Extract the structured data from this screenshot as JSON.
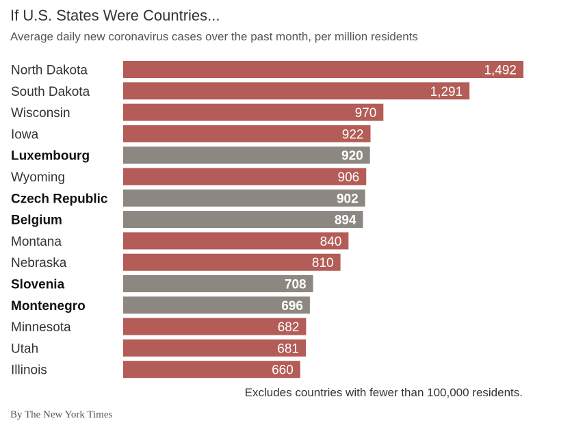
{
  "chart_data": {
    "type": "bar",
    "orientation": "horizontal",
    "title": "If U.S. States Were Countries...",
    "subtitle": "Average daily new coronavirus cases over the past month, per million residents",
    "categories": [
      "North Dakota",
      "South Dakota",
      "Wisconsin",
      "Iowa",
      "Luxembourg",
      "Wyoming",
      "Czech Republic",
      "Belgium",
      "Montana",
      "Nebraska",
      "Slovenia",
      "Montenegro",
      "Minnesota",
      "Utah",
      "Illinois"
    ],
    "values": [
      1492,
      1291,
      970,
      922,
      920,
      906,
      902,
      894,
      840,
      810,
      708,
      696,
      682,
      681,
      660
    ],
    "value_labels": [
      "1,492",
      "1,291",
      "970",
      "922",
      "920",
      "906",
      "902",
      "894",
      "840",
      "810",
      "708",
      "696",
      "682",
      "681",
      "660"
    ],
    "group": [
      "state",
      "state",
      "state",
      "state",
      "country",
      "state",
      "country",
      "country",
      "state",
      "state",
      "country",
      "country",
      "state",
      "state",
      "state"
    ],
    "colors": {
      "state": "#b45c57",
      "country": "#8c8881"
    },
    "xlim": [
      0,
      1492
    ],
    "grid": false,
    "note": "Excludes countries with fewer than 100,000 residents.",
    "credit": "By The New York Times"
  }
}
